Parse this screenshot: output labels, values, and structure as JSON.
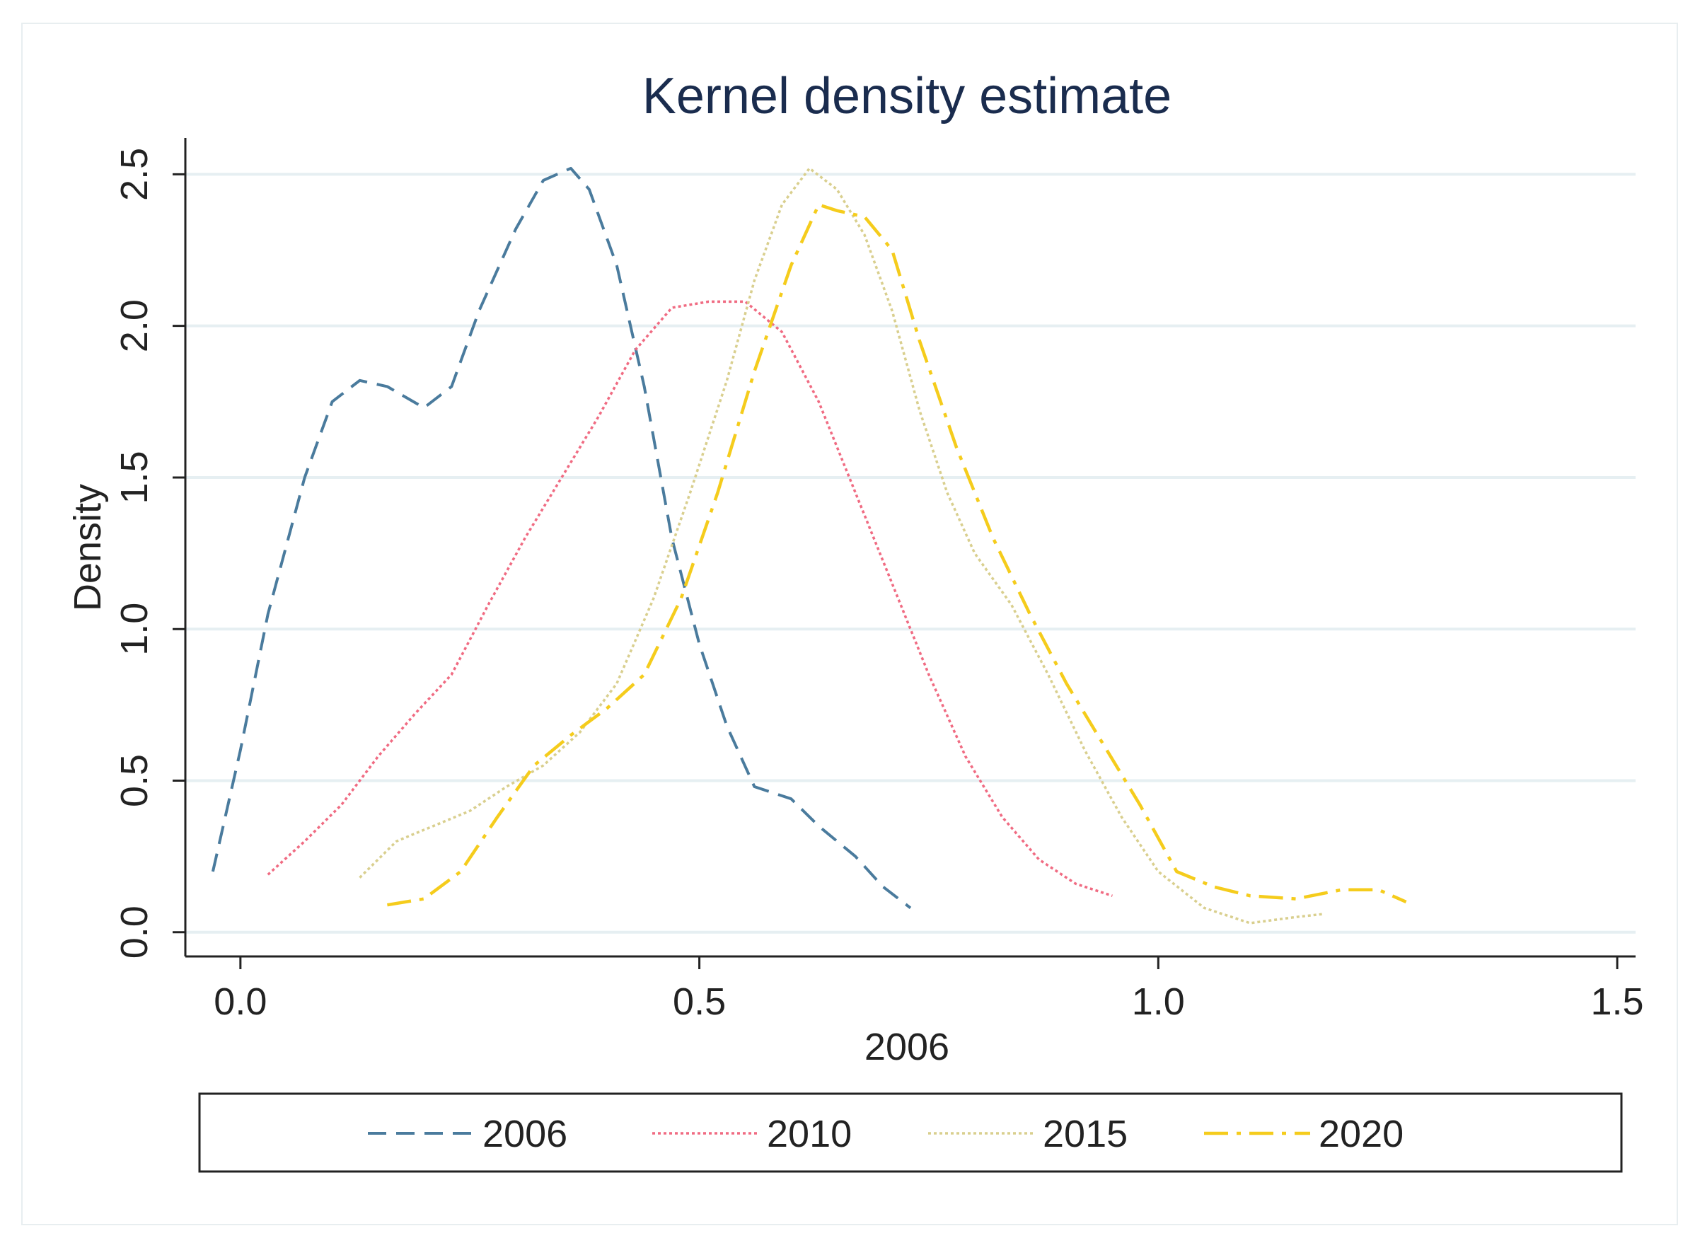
{
  "chart_data": {
    "type": "line",
    "title": "Kernel density estimate",
    "xlabel": "2006",
    "ylabel": "Density",
    "xlim": [
      -0.06,
      1.52
    ],
    "ylim": [
      -0.08,
      2.62
    ],
    "xticks": [
      0.0,
      0.5,
      1.0,
      1.5
    ],
    "xtick_labels": [
      "0.0",
      "0.5",
      "1.0",
      "1.5"
    ],
    "yticks": [
      0.0,
      0.5,
      1.0,
      1.5,
      2.0,
      2.5
    ],
    "ytick_labels": [
      "0.0",
      "0.5",
      "1.0",
      "1.5",
      "2.0",
      "2.5"
    ],
    "grid": true,
    "legend_position": "bottom",
    "series": [
      {
        "name": "2006",
        "color": "#4a7b9d",
        "dash": "dashed",
        "x": [
          -0.03,
          0.0,
          0.03,
          0.07,
          0.1,
          0.13,
          0.16,
          0.2,
          0.23,
          0.26,
          0.3,
          0.33,
          0.36,
          0.38,
          0.41,
          0.44,
          0.47,
          0.5,
          0.53,
          0.56,
          0.6,
          0.63,
          0.67,
          0.7,
          0.73
        ],
        "y": [
          0.2,
          0.6,
          1.05,
          1.5,
          1.75,
          1.82,
          1.8,
          1.73,
          1.8,
          2.05,
          2.32,
          2.48,
          2.52,
          2.45,
          2.2,
          1.8,
          1.3,
          0.95,
          0.68,
          0.48,
          0.44,
          0.35,
          0.25,
          0.15,
          0.08
        ]
      },
      {
        "name": "2010",
        "color": "#f06b82",
        "dash": "dotted",
        "x": [
          0.03,
          0.07,
          0.11,
          0.15,
          0.19,
          0.23,
          0.27,
          0.31,
          0.35,
          0.39,
          0.43,
          0.47,
          0.51,
          0.55,
          0.59,
          0.63,
          0.67,
          0.71,
          0.75,
          0.79,
          0.83,
          0.87,
          0.91,
          0.95
        ],
        "y": [
          0.19,
          0.3,
          0.42,
          0.58,
          0.72,
          0.85,
          1.08,
          1.3,
          1.5,
          1.7,
          1.92,
          2.06,
          2.08,
          2.08,
          1.98,
          1.75,
          1.45,
          1.15,
          0.85,
          0.58,
          0.38,
          0.24,
          0.16,
          0.12
        ]
      },
      {
        "name": "2015",
        "color": "#d9cf8e",
        "dash": "dotted",
        "x": [
          0.13,
          0.17,
          0.21,
          0.25,
          0.29,
          0.33,
          0.37,
          0.41,
          0.45,
          0.49,
          0.53,
          0.56,
          0.59,
          0.62,
          0.65,
          0.68,
          0.71,
          0.74,
          0.77,
          0.8,
          0.84,
          0.88,
          0.92,
          0.96,
          1.0,
          1.05,
          1.1,
          1.15,
          1.18
        ],
        "y": [
          0.18,
          0.3,
          0.35,
          0.4,
          0.48,
          0.55,
          0.66,
          0.82,
          1.1,
          1.45,
          1.82,
          2.15,
          2.4,
          2.52,
          2.45,
          2.3,
          2.05,
          1.72,
          1.45,
          1.25,
          1.08,
          0.85,
          0.6,
          0.38,
          0.2,
          0.08,
          0.03,
          0.05,
          0.06
        ]
      },
      {
        "name": "2020",
        "color": "#f5cc1c",
        "dash": "dashdot",
        "x": [
          0.16,
          0.2,
          0.24,
          0.28,
          0.32,
          0.36,
          0.4,
          0.44,
          0.48,
          0.52,
          0.56,
          0.6,
          0.63,
          0.65,
          0.68,
          0.71,
          0.74,
          0.78,
          0.82,
          0.86,
          0.9,
          0.94,
          0.98,
          1.02,
          1.06,
          1.1,
          1.15,
          1.2,
          1.24,
          1.27
        ],
        "y": [
          0.09,
          0.11,
          0.2,
          0.38,
          0.55,
          0.65,
          0.74,
          0.85,
          1.1,
          1.45,
          1.85,
          2.2,
          2.4,
          2.38,
          2.36,
          2.25,
          1.95,
          1.6,
          1.3,
          1.05,
          0.82,
          0.62,
          0.42,
          0.2,
          0.15,
          0.12,
          0.11,
          0.14,
          0.14,
          0.1
        ]
      }
    ]
  }
}
